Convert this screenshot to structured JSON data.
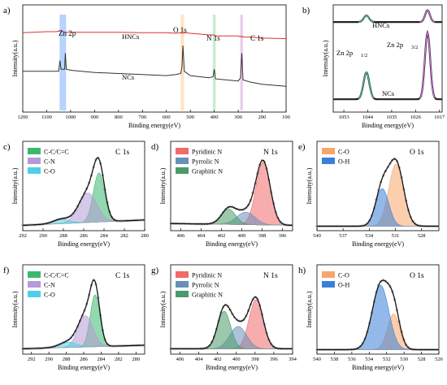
{
  "panels": [
    {
      "id": "a",
      "label": "a)",
      "type": "line",
      "title": "",
      "xlabel": "Binding energy(eV)",
      "ylabel": "Intensity(a.u.)",
      "xlim": [
        1200,
        100
      ],
      "reversed": true,
      "xticks": [
        "1200",
        "1100",
        "1000",
        "900",
        "800",
        "700",
        "600",
        "500",
        "400",
        "300",
        "200",
        "100"
      ],
      "series": [
        {
          "name": "HNCs",
          "color": "#e03030",
          "values_x": [
            1200,
            1100,
            1060,
            1040,
            1025,
            1000,
            900,
            800,
            700,
            600,
            560,
            540,
            530,
            520,
            500,
            420,
            405,
            400,
            395,
            350,
            300,
            290,
            285,
            280,
            250,
            200,
            100
          ],
          "values_y": [
            0.74,
            0.75,
            0.75,
            0.76,
            0.745,
            0.745,
            0.745,
            0.745,
            0.74,
            0.74,
            0.735,
            0.74,
            0.735,
            0.74,
            0.735,
            0.72,
            0.72,
            0.72,
            0.71,
            0.71,
            0.71,
            0.7,
            0.71,
            0.7,
            0.7,
            0.69,
            0.685
          ]
        },
        {
          "name": "NCs",
          "color": "#333333",
          "values_x": [
            1200,
            1100,
            1050,
            1045,
            1040,
            1025,
            1022,
            1018,
            1000,
            900,
            800,
            700,
            600,
            560,
            540,
            535,
            531,
            525,
            500,
            420,
            405,
            400,
            395,
            350,
            300,
            290,
            285,
            280,
            250,
            200,
            100
          ],
          "values_y": [
            0.38,
            0.38,
            0.38,
            0.48,
            0.4,
            0.4,
            0.55,
            0.4,
            0.39,
            0.37,
            0.36,
            0.35,
            0.34,
            0.35,
            0.36,
            0.42,
            0.62,
            0.38,
            0.34,
            0.32,
            0.33,
            0.4,
            0.31,
            0.3,
            0.29,
            0.32,
            0.55,
            0.3,
            0.28,
            0.26,
            0.24
          ]
        }
      ],
      "annotations": [
        "Zn 2p",
        "O 1s",
        "N 1s",
        "C 1s"
      ],
      "highlights": [
        {
          "label": "Zn 2p",
          "from": 1046,
          "to": 1019,
          "color": "#6fa8ff"
        },
        {
          "label": "O 1s",
          "from": 540,
          "to": 526,
          "color": "#ffc985"
        },
        {
          "label": "N 1s",
          "from": 406,
          "to": 394,
          "color": "#8fe0a0"
        },
        {
          "label": "C 1s",
          "from": 292,
          "to": 280,
          "color": "#d8a0e0"
        }
      ]
    },
    {
      "id": "b",
      "label": "b)",
      "type": "line",
      "title": "",
      "xlabel": "Binding energy(eV)",
      "ylabel": "Intensity(a.u.)",
      "xlim": [
        1057,
        1016
      ],
      "reversed": true,
      "xticks": [
        "1053",
        "1044",
        "1035",
        "1026",
        "1017"
      ],
      "series_labels": [
        "HNCs",
        "NCs"
      ],
      "peak_labels": [
        "Zn 2p",
        "1/2",
        "Zn 2p",
        "3/2"
      ],
      "series": [
        {
          "name": "HNCs",
          "baseline": 0.84,
          "peaks": [
            {
              "x": 1044.5,
              "h": 0.06,
              "w": 1.0
            },
            {
              "x": 1021.5,
              "h": 0.11,
              "w": 0.9
            }
          ]
        },
        {
          "name": "NCs",
          "baseline": 0.12,
          "peaks": [
            {
              "x": 1044.5,
              "h": 0.25,
              "w": 1.1
            },
            {
              "x": 1021.5,
              "h": 0.62,
              "w": 1.0
            }
          ]
        }
      ],
      "fit_colors": [
        "#4ec48a",
        "#d06fd6"
      ]
    },
    {
      "id": "c",
      "label": "c)",
      "type": "area",
      "title": "C 1s",
      "xlabel": "Binding energy(eV)",
      "ylabel": "Intensity(a.u.)",
      "xlim": [
        292,
        280
      ],
      "reversed": true,
      "xticks": [
        "292",
        "290",
        "288",
        "286",
        "284",
        "282",
        "280"
      ],
      "legend": [
        "C-C/C=C",
        "C-N",
        "C-O"
      ],
      "baseline": [
        0.06,
        0.12
      ],
      "components": [
        {
          "name": "C-C/C=C",
          "center": 284.5,
          "height": 0.55,
          "sigma": 0.55,
          "color": "#3cb86e"
        },
        {
          "name": "C-N",
          "center": 285.6,
          "height": 0.33,
          "sigma": 0.9,
          "color": "#b49ad6"
        },
        {
          "name": "C-O",
          "center": 288.2,
          "height": 0.05,
          "sigma": 0.8,
          "color": "#4fcfe8"
        }
      ]
    },
    {
      "id": "d",
      "label": "d)",
      "type": "area",
      "title": "N 1s",
      "xlabel": "Binding energy(eV)",
      "ylabel": "Intensity(a.u.)",
      "xlim": [
        407,
        395
      ],
      "reversed": true,
      "xticks": [
        "406",
        "404",
        "402",
        "400",
        "398",
        "396"
      ],
      "legend": [
        "Pyridinic N",
        "Pyrrolic N",
        "Graphitic N"
      ],
      "baseline": [
        0.08,
        0.06
      ],
      "components": [
        {
          "name": "Pyridinic N",
          "center": 397.9,
          "height": 0.7,
          "sigma": 0.7,
          "color": "#f06a6a"
        },
        {
          "name": "Pyrrolic N",
          "center": 399.6,
          "height": 0.14,
          "sigma": 0.9,
          "color": "#6a8fb8"
        },
        {
          "name": "Graphitic N",
          "center": 401.3,
          "height": 0.17,
          "sigma": 0.7,
          "color": "#4a9a6a"
        }
      ]
    },
    {
      "id": "e",
      "label": "e)",
      "type": "area",
      "title": "O 1s",
      "xlabel": "Binding energy(eV)",
      "ylabel": "Intensity(a.u.)",
      "xlim": [
        540,
        526
      ],
      "reversed": true,
      "xticks": [
        "540",
        "537",
        "534",
        "531",
        "528"
      ],
      "legend": [
        "C-O",
        "O-H"
      ],
      "baseline": [
        0.05,
        0.05
      ],
      "components": [
        {
          "name": "C-O",
          "center": 530.9,
          "height": 0.7,
          "sigma": 0.85,
          "color": "#f7a66a"
        },
        {
          "name": "O-H",
          "center": 532.5,
          "height": 0.42,
          "sigma": 0.75,
          "color": "#3a80d8"
        }
      ]
    },
    {
      "id": "f",
      "label": "f)",
      "type": "area",
      "title": "C 1s",
      "xlabel": "Binding energy(eV)",
      "ylabel": "Intensity(a.u.)",
      "xlim": [
        293,
        279
      ],
      "reversed": true,
      "xticks": [
        "292",
        "290",
        "288",
        "286",
        "284",
        "282",
        "280"
      ],
      "legend": [
        "C-C/C=C",
        "C-N",
        "C-O"
      ],
      "baseline": [
        0.06,
        0.1
      ],
      "components": [
        {
          "name": "C-C/C=C",
          "center": 284.7,
          "height": 0.58,
          "sigma": 0.55,
          "color": "#3cb86e"
        },
        {
          "name": "C-N",
          "center": 285.8,
          "height": 0.35,
          "sigma": 0.85,
          "color": "#b49ad6"
        },
        {
          "name": "C-O",
          "center": 287.8,
          "height": 0.06,
          "sigma": 1.0,
          "color": "#4fcfe8"
        }
      ]
    },
    {
      "id": "g",
      "label": "g)",
      "type": "area",
      "title": "N 1s",
      "xlabel": "Binding energy(eV)",
      "ylabel": "Intensity(a.u.)",
      "xlim": [
        407,
        394
      ],
      "reversed": true,
      "xticks": [
        "406",
        "404",
        "402",
        "400",
        "398",
        "396",
        "394"
      ],
      "legend": [
        "Pyridinic N",
        "Pyrrolic N",
        "Graphitic N"
      ],
      "baseline": [
        0.06,
        0.06
      ],
      "components": [
        {
          "name": "Pyridinic N",
          "center": 397.9,
          "height": 0.55,
          "sigma": 0.75,
          "color": "#f06a6a"
        },
        {
          "name": "Pyrrolic N",
          "center": 399.8,
          "height": 0.25,
          "sigma": 0.9,
          "color": "#6a8fb8"
        },
        {
          "name": "Graphitic N",
          "center": 401.3,
          "height": 0.42,
          "sigma": 0.7,
          "color": "#4a9a6a"
        }
      ]
    },
    {
      "id": "h",
      "label": "h)",
      "type": "area",
      "title": "O 1s",
      "xlabel": "Binding energy(eV)",
      "ylabel": "Intensity(a.u.)",
      "xlim": [
        540,
        526
      ],
      "reversed": true,
      "xticks": [
        "540",
        "538",
        "536",
        "534",
        "532",
        "530",
        "528",
        "526"
      ],
      "legend": [
        "C-O",
        "O-H"
      ],
      "baseline": [
        0.05,
        0.05
      ],
      "components": [
        {
          "name": "C-O",
          "center": 531.2,
          "height": 0.4,
          "sigma": 0.7,
          "color": "#f7a66a"
        },
        {
          "name": "O-H",
          "center": 532.7,
          "height": 0.72,
          "sigma": 0.95,
          "color": "#3a80d8"
        }
      ]
    }
  ]
}
